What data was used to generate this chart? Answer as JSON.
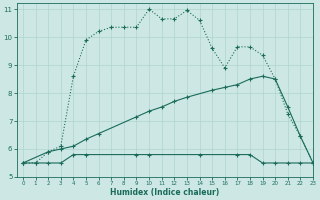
{
  "xlabel": "Humidex (Indice chaleur)",
  "xlim": [
    -0.5,
    23
  ],
  "ylim": [
    5,
    11.2
  ],
  "yticks": [
    5,
    6,
    7,
    8,
    9,
    10,
    11
  ],
  "xticks": [
    0,
    1,
    2,
    3,
    4,
    5,
    6,
    7,
    8,
    9,
    10,
    11,
    12,
    13,
    14,
    15,
    16,
    17,
    18,
    19,
    20,
    21,
    22,
    23
  ],
  "bg_color": "#cde8e4",
  "line_color": "#1a6b5a",
  "grid_color": "#aed4ce",
  "line1_x": [
    0,
    1,
    2,
    3,
    4,
    5,
    6,
    7,
    8,
    9,
    10,
    11,
    12,
    13,
    14,
    15,
    16,
    17,
    18,
    19,
    20,
    21,
    22,
    23
  ],
  "line1_y": [
    5.5,
    5.5,
    5.9,
    6.1,
    8.6,
    9.9,
    10.2,
    10.35,
    10.35,
    10.35,
    11.0,
    10.65,
    10.65,
    10.95,
    10.6,
    9.6,
    8.9,
    9.65,
    9.65,
    9.35,
    8.5,
    7.25,
    6.45,
    5.5
  ],
  "line1_style": "-.",
  "line2_x": [
    0,
    2,
    3,
    4,
    5,
    6,
    9,
    10,
    11,
    12,
    13,
    15,
    16,
    17,
    18,
    19,
    20,
    21,
    22,
    23
  ],
  "line2_y": [
    5.5,
    5.9,
    6.0,
    6.1,
    6.35,
    6.55,
    7.15,
    7.35,
    7.5,
    7.7,
    7.85,
    8.1,
    8.2,
    8.3,
    8.5,
    8.6,
    8.5,
    7.5,
    6.45,
    5.5
  ],
  "line3_x": [
    0,
    1,
    2,
    3,
    4,
    5,
    9,
    10,
    14,
    17,
    18,
    19,
    20,
    21,
    22,
    23
  ],
  "line3_y": [
    5.5,
    5.5,
    5.5,
    5.5,
    5.8,
    5.8,
    5.8,
    5.8,
    5.8,
    5.8,
    5.8,
    5.5,
    5.5,
    5.5,
    5.5,
    5.5
  ]
}
